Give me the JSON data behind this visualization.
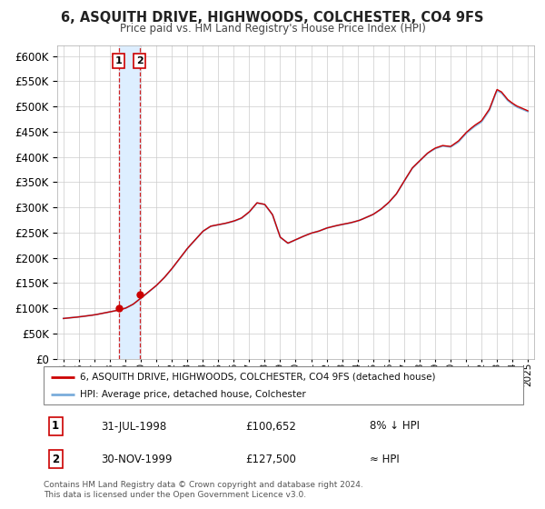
{
  "title": "6, ASQUITH DRIVE, HIGHWOODS, COLCHESTER, CO4 9FS",
  "subtitle": "Price paid vs. HM Land Registry's House Price Index (HPI)",
  "legend_line1": "6, ASQUITH DRIVE, HIGHWOODS, COLCHESTER, CO4 9FS (detached house)",
  "legend_line2": "HPI: Average price, detached house, Colchester",
  "transaction1_label": "1",
  "transaction1_date": "31-JUL-1998",
  "transaction1_price": "£100,652",
  "transaction1_note": "8% ↓ HPI",
  "transaction2_label": "2",
  "transaction2_date": "30-NOV-1999",
  "transaction2_price": "£127,500",
  "transaction2_note": "≈ HPI",
  "footer": "Contains HM Land Registry data © Crown copyright and database right 2024.\nThis data is licensed under the Open Government Licence v3.0.",
  "hpi_color": "#7aaddb",
  "price_color": "#cc0000",
  "marker_color": "#cc0000",
  "background_color": "#ffffff",
  "grid_color": "#cccccc",
  "shade_color": "#ddeeff",
  "transaction1_x": 1998.58,
  "transaction2_x": 1999.92,
  "transaction1_y": 100652,
  "transaction2_y": 127500,
  "xlim": [
    1994.6,
    2025.4
  ],
  "ylim": [
    0,
    620000
  ],
  "yticks": [
    0,
    50000,
    100000,
    150000,
    200000,
    250000,
    300000,
    350000,
    400000,
    450000,
    500000,
    550000,
    600000
  ]
}
